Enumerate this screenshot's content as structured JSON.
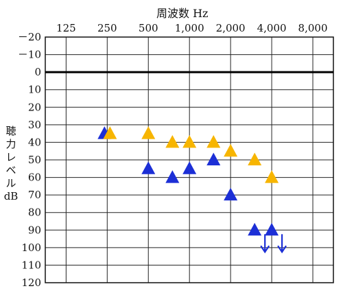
{
  "chart_data": {
    "type": "scatter",
    "title": "",
    "xlabel": "周波数 Hz",
    "ylabel_lines": [
      "聴",
      "力",
      "レ",
      "ベ",
      "ル",
      "dB"
    ],
    "x_scale": "log2",
    "x_ticks": [
      125,
      250,
      500,
      1000,
      2000,
      4000,
      8000
    ],
    "x_tick_labels": [
      "125",
      "250",
      "500",
      "1,000",
      "2,000",
      "4,000",
      "8,000"
    ],
    "x_range": [
      88,
      11314
    ],
    "y_ticks": [
      -20,
      -10,
      0,
      10,
      20,
      30,
      40,
      50,
      60,
      70,
      80,
      90,
      100,
      110,
      120
    ],
    "y_tick_labels": [
      "－20",
      "－10",
      "0",
      "10",
      "20",
      "30",
      "40",
      "50",
      "60",
      "70",
      "80",
      "90",
      "100",
      "110",
      "120"
    ],
    "y_range": [
      -20,
      120
    ],
    "y_inverted": true,
    "reference_line_y": 0,
    "grid": true,
    "marker": "triangle",
    "series": [
      {
        "color": "#1c2fd6",
        "points": [
          {
            "x": 250,
            "y": 35
          },
          {
            "x": 500,
            "y": 55
          },
          {
            "x": 750,
            "y": 60
          },
          {
            "x": 1000,
            "y": 55
          },
          {
            "x": 1500,
            "y": 50
          },
          {
            "x": 2000,
            "y": 70
          },
          {
            "x": 3000,
            "y": 90
          },
          {
            "x": 4000,
            "y": 90
          }
        ],
        "no_response_arrows": [
          3000,
          4000
        ]
      },
      {
        "color": "#f7b500",
        "points": [
          {
            "x": 250,
            "y": 35
          },
          {
            "x": 500,
            "y": 35
          },
          {
            "x": 750,
            "y": 40
          },
          {
            "x": 1000,
            "y": 40
          },
          {
            "x": 1500,
            "y": 40
          },
          {
            "x": 2000,
            "y": 45
          },
          {
            "x": 3000,
            "y": 50
          },
          {
            "x": 4000,
            "y": 60
          }
        ]
      }
    ]
  }
}
